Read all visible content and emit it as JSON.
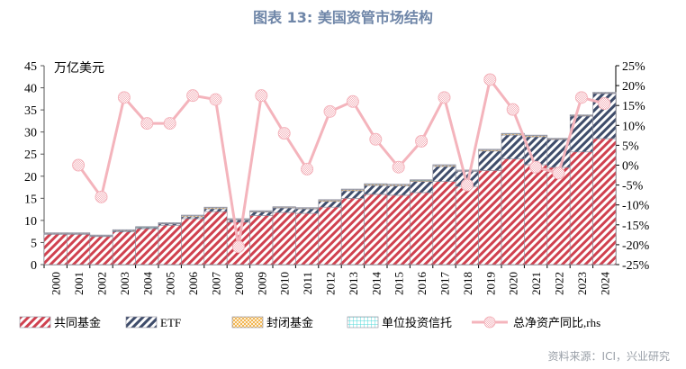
{
  "title": "图表 13: 美国资管市场结构",
  "source": "资料来源：ICI，兴业研究",
  "colors": {
    "mutual": "#d0414f",
    "etf": "#3f4d6b",
    "closed": "#f0a830",
    "uit": "#4fd8d8",
    "line": "#f4b4bc"
  },
  "chart_data": {
    "type": "bar+line",
    "title": "图表 13: 美国资管市场结构",
    "ylabel_left": "万亿美元",
    "ylim_left": [
      0,
      45
    ],
    "yticks_left": [
      "0",
      "5",
      "10",
      "15",
      "20",
      "25",
      "30",
      "35",
      "40",
      "45"
    ],
    "ylim_right": [
      -25,
      25
    ],
    "yticks_right": [
      "-25%",
      "-20%",
      "-15%",
      "-10%",
      "-5%",
      "0%",
      "5%",
      "10%",
      "15%",
      "20%",
      "25%"
    ],
    "categories": [
      "2000",
      "2001",
      "2002",
      "2003",
      "2004",
      "2005",
      "2006",
      "2007",
      "2008",
      "2009",
      "2010",
      "2011",
      "2012",
      "2013",
      "2014",
      "2015",
      "2016",
      "2017",
      "2018",
      "2019",
      "2020",
      "2021",
      "2022",
      "2023",
      "2024"
    ],
    "legend_position": "bottom",
    "series": [
      {
        "name": "共同基金",
        "type": "stacked-bar",
        "values": [
          6.9,
          6.9,
          6.4,
          7.4,
          8.1,
          8.9,
          10.4,
          12.0,
          9.6,
          11.1,
          11.8,
          11.6,
          13.0,
          15.0,
          15.9,
          15.7,
          16.3,
          18.8,
          17.7,
          21.3,
          23.9,
          22.6,
          22.0,
          25.5,
          28.5
        ]
      },
      {
        "name": "ETF",
        "type": "stacked-bar",
        "values": [
          0.1,
          0.1,
          0.1,
          0.2,
          0.2,
          0.3,
          0.4,
          0.6,
          0.5,
          0.8,
          1.0,
          1.0,
          1.3,
          1.7,
          2.0,
          2.1,
          2.5,
          3.4,
          3.4,
          4.4,
          5.4,
          6.3,
          6.3,
          8.1,
          10.2
        ]
      },
      {
        "name": "封闭基金",
        "type": "stacked-bar",
        "values": [
          0.1,
          0.1,
          0.1,
          0.2,
          0.2,
          0.2,
          0.3,
          0.3,
          0.2,
          0.2,
          0.2,
          0.2,
          0.3,
          0.3,
          0.3,
          0.3,
          0.3,
          0.3,
          0.2,
          0.3,
          0.3,
          0.3,
          0.2,
          0.2,
          0.2
        ]
      },
      {
        "name": "单位投资信托",
        "type": "stacked-bar",
        "values": [
          0.1,
          0.1,
          0.1,
          0.1,
          0.1,
          0.1,
          0.1,
          0.1,
          0.1,
          0.1,
          0.1,
          0.1,
          0.1,
          0.1,
          0.1,
          0.1,
          0.1,
          0.1,
          0.1,
          0.1,
          0.1,
          0.1,
          0.1,
          0.1,
          0.1
        ]
      },
      {
        "name": "总净资产同比,rhs",
        "type": "line",
        "axis": "right",
        "values": [
          null,
          0,
          -8,
          17,
          10.5,
          10.5,
          17.5,
          16.5,
          -20.5,
          17.5,
          8,
          -1,
          13.5,
          16,
          6.5,
          -0.5,
          6,
          17,
          -5,
          21.5,
          14,
          -0.5,
          -2,
          17,
          15.5
        ]
      }
    ]
  }
}
